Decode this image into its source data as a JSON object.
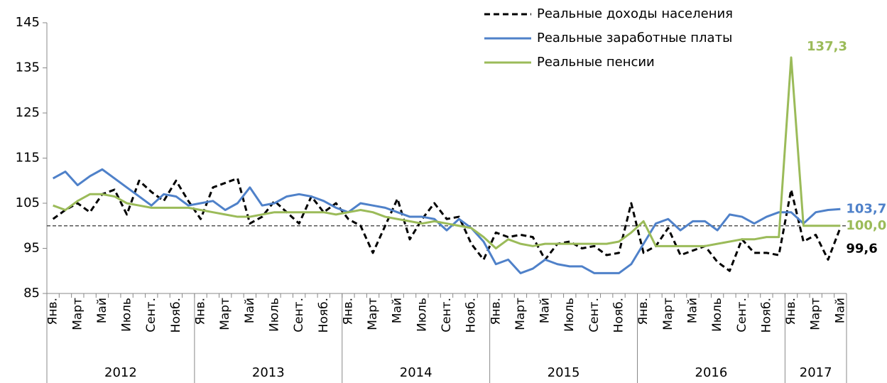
{
  "chart_data": {
    "type": "line",
    "categories": [
      "Янв.",
      null,
      "Март",
      null,
      "Май",
      null,
      "Июль",
      null,
      "Сент.",
      null,
      "Нояб.",
      null,
      "Янв.",
      null,
      "Март",
      null,
      "Май",
      null,
      "Июль",
      null,
      "Сент.",
      null,
      "Нояб.",
      null,
      "Янв.",
      null,
      "Март",
      null,
      "Май",
      null,
      "Июль",
      null,
      "Сент.",
      null,
      "Нояб.",
      null,
      "Янв.",
      null,
      "Март",
      null,
      "Май",
      null,
      "Июль",
      null,
      "Сент.",
      null,
      "Нояб.",
      null,
      "Янв.",
      null,
      "Март",
      null,
      "Май",
      null,
      "Июль",
      null,
      "Сент.",
      null,
      "Нояб.",
      null,
      "Янв.",
      null,
      "Март",
      null,
      "Май"
    ],
    "year_groups": [
      {
        "label": "2012",
        "span": 12
      },
      {
        "label": "2013",
        "span": 12
      },
      {
        "label": "2014",
        "span": 12
      },
      {
        "label": "2015",
        "span": 12
      },
      {
        "label": "2016",
        "span": 12
      },
      {
        "label": "2017",
        "span": 5
      }
    ],
    "series": [
      {
        "name": "Реальные доходы населения",
        "color": "#000000",
        "style": "dashed",
        "values": [
          101.5,
          103.5,
          105,
          103,
          107,
          108,
          102.5,
          110,
          107.5,
          105.5,
          110,
          105.5,
          101.5,
          108.5,
          109.5,
          110.5,
          100.5,
          102,
          105.5,
          103,
          100.5,
          106.5,
          103,
          105,
          101.5,
          100,
          94,
          100,
          106,
          97,
          101.5,
          105,
          101.5,
          102,
          96,
          92.5,
          98.5,
          97.5,
          98,
          97.5,
          92.5,
          96,
          96.5,
          95,
          95.5,
          93.5,
          94,
          105,
          94,
          95.5,
          99.5,
          93.5,
          94.5,
          95.5,
          92,
          90,
          97,
          94,
          94,
          93.5,
          108,
          96.5,
          98,
          92.5,
          99.6
        ],
        "value_labels": [
          null,
          null,
          null,
          null,
          null,
          null,
          null,
          null,
          null,
          null,
          null,
          null,
          null,
          null,
          null,
          null,
          null,
          null,
          null,
          null,
          null,
          null,
          null,
          null,
          null,
          null,
          null,
          null,
          null,
          null,
          null,
          null,
          null,
          null,
          null,
          null,
          null,
          null,
          null,
          null,
          null,
          null,
          null,
          null,
          null,
          null,
          null,
          null,
          null,
          null,
          null,
          null,
          null,
          null,
          null,
          null,
          null,
          null,
          null,
          null,
          null,
          null,
          null,
          null,
          "99,6"
        ]
      },
      {
        "name": "Реальные заработные платы",
        "color": "#4f81c9",
        "style": "solid",
        "values": [
          110.5,
          112,
          109,
          111,
          112.5,
          110.5,
          108.5,
          106.5,
          104.5,
          107,
          106.5,
          104.5,
          105,
          105.5,
          103.5,
          105,
          108.5,
          104.5,
          105,
          106.5,
          107,
          106.5,
          105.5,
          104,
          103,
          105,
          104.5,
          104,
          103,
          102,
          102,
          101.5,
          99,
          101.5,
          99.5,
          96.5,
          91.5,
          92.5,
          89.5,
          90.5,
          92.5,
          91.5,
          91,
          91,
          89.5,
          89.5,
          89.5,
          91.5,
          96,
          100.5,
          101.5,
          99,
          101,
          101,
          99,
          102.5,
          102,
          100.5,
          102,
          103,
          103,
          100.5,
          103,
          103.5,
          103.7
        ],
        "value_labels": [
          null,
          null,
          null,
          null,
          null,
          null,
          null,
          null,
          null,
          null,
          null,
          null,
          null,
          null,
          null,
          null,
          null,
          null,
          null,
          null,
          null,
          null,
          null,
          null,
          null,
          null,
          null,
          null,
          null,
          null,
          null,
          null,
          null,
          null,
          null,
          null,
          null,
          null,
          null,
          null,
          null,
          null,
          null,
          null,
          null,
          null,
          null,
          null,
          null,
          null,
          null,
          null,
          null,
          null,
          null,
          null,
          null,
          null,
          null,
          null,
          null,
          null,
          null,
          null,
          "103,7"
        ]
      },
      {
        "name": "Реальные пенсии",
        "color": "#9bbb59",
        "style": "solid",
        "values": [
          104.5,
          103.5,
          105.5,
          107,
          107,
          106.5,
          105,
          104.5,
          104,
          104,
          104,
          104,
          103.5,
          103,
          102.5,
          102,
          102,
          102.5,
          103,
          103,
          103,
          103,
          103,
          102.5,
          103,
          103.5,
          103,
          102,
          101.5,
          101,
          100.5,
          101,
          100.5,
          100,
          99.5,
          97.5,
          95,
          97,
          96,
          95.5,
          96,
          96,
          96,
          96,
          96,
          96,
          96.5,
          98.5,
          101,
          95.5,
          95.5,
          95.5,
          95.5,
          95.5,
          96,
          96.5,
          97,
          97,
          97.5,
          97.5,
          137.3,
          100,
          100,
          100,
          100.0
        ],
        "value_labels": [
          null,
          null,
          null,
          null,
          null,
          null,
          null,
          null,
          null,
          null,
          null,
          null,
          null,
          null,
          null,
          null,
          null,
          null,
          null,
          null,
          null,
          null,
          null,
          null,
          null,
          null,
          null,
          null,
          null,
          null,
          null,
          null,
          null,
          null,
          null,
          null,
          null,
          null,
          null,
          null,
          null,
          null,
          null,
          null,
          null,
          null,
          null,
          null,
          null,
          null,
          null,
          null,
          null,
          null,
          null,
          null,
          null,
          null,
          null,
          null,
          "137,3",
          null,
          null,
          null,
          "100,0"
        ]
      }
    ],
    "reference_line": {
      "value": 100,
      "color": "#555555"
    },
    "ylim": [
      85,
      145
    ],
    "yticks": [
      85,
      95,
      105,
      115,
      125,
      135,
      145
    ],
    "grid": false,
    "legend": "top-right"
  }
}
